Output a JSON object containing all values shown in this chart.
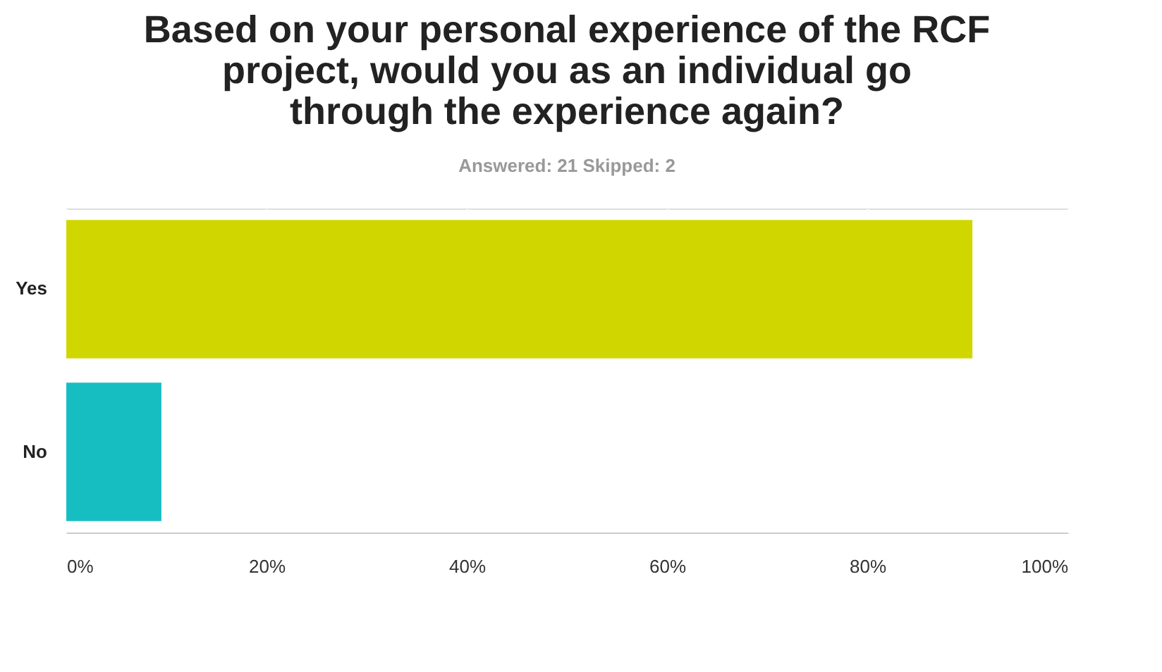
{
  "chart_data": {
    "type": "bar",
    "orientation": "horizontal",
    "title": "Based on your personal experience of the RCF project, would you as an individual go through the experience again?",
    "subtitle": "Answered: 21    Skipped: 2",
    "categories": [
      "Yes",
      "No"
    ],
    "values": [
      90.5,
      9.5
    ],
    "colors": [
      "#d0d700",
      "#16bec1"
    ],
    "xlim": [
      0,
      100
    ],
    "xticks": [
      {
        "value": 0,
        "label": "0%"
      },
      {
        "value": 20,
        "label": "20%"
      },
      {
        "value": 40,
        "label": "40%"
      },
      {
        "value": 60,
        "label": "60%"
      },
      {
        "value": 80,
        "label": "80%"
      },
      {
        "value": 100,
        "label": "100%"
      }
    ],
    "grid": "x"
  }
}
